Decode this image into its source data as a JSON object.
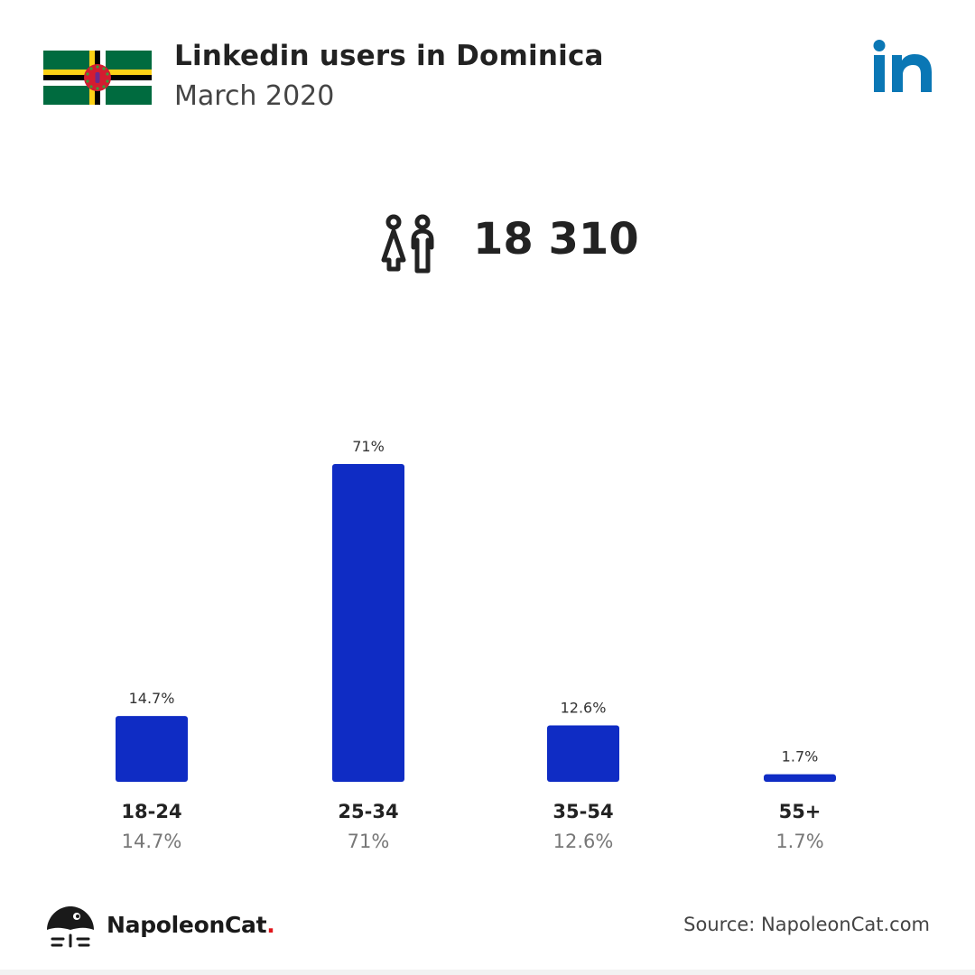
{
  "header": {
    "title": "Linkedin users in Dominica",
    "subtitle": "March 2020"
  },
  "summary": {
    "total_users": "18 310"
  },
  "icons": {
    "flag": "dominica-flag-icon",
    "platform": "linkedin-logo-icon",
    "users": "users-icon",
    "brand": "napoleoncat-logo-icon"
  },
  "colors": {
    "bar": "#0f2cc4",
    "linkedin": "#0a77b5"
  },
  "footer": {
    "brand_name": "NapoleonCat",
    "brand_dot": ".",
    "source": "Source: NapoleonCat.com"
  },
  "chart_data": {
    "type": "bar",
    "categories": [
      "18-24",
      "25-34",
      "35-54",
      "55+"
    ],
    "values": [
      14.7,
      71,
      12.6,
      1.7
    ],
    "value_labels": [
      "14.7%",
      "71%",
      "12.6%",
      "1.7%"
    ],
    "ylim": [
      0,
      71
    ],
    "grid": false,
    "legend": "none"
  }
}
